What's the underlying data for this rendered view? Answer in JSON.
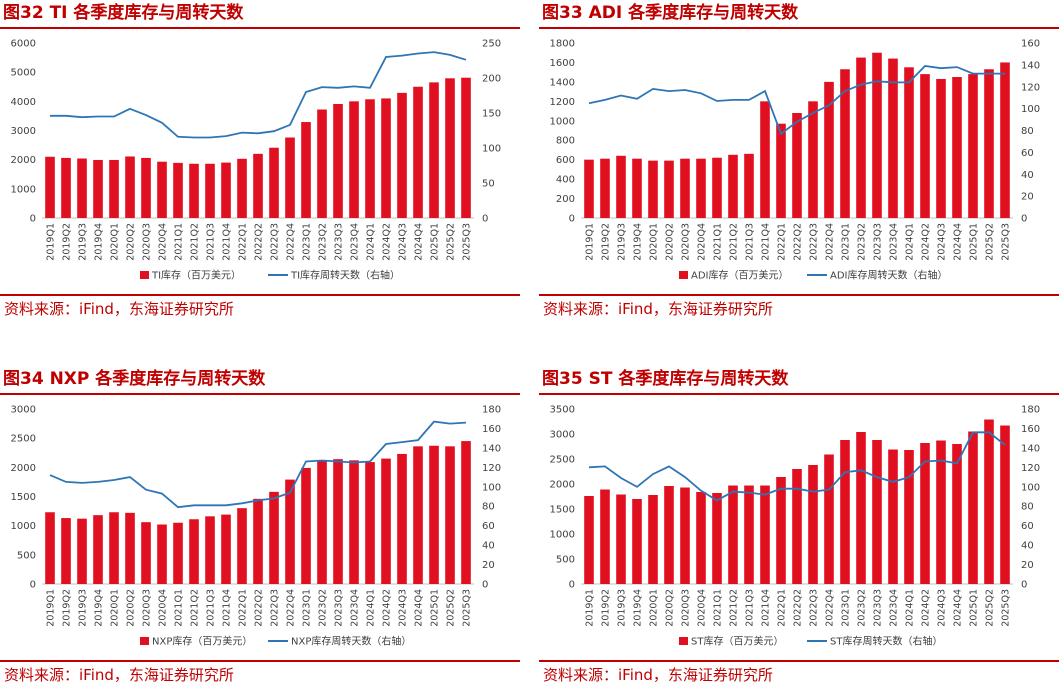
{
  "source_text": "资料来源：iFind，东海证券研究所",
  "charts": [
    {
      "title": "图32  TI 各季度库存与周转天数",
      "legend": {
        "bar": "TI库存（百万美元）",
        "line": "TI库存周转天数（右轴）"
      },
      "colors": {
        "bar": "#E01020",
        "line": "#2E75B6"
      }
    },
    {
      "title": "图33  ADI 各季度库存与周转天数",
      "legend": {
        "bar": "ADI库存（百万美元）",
        "line": "ADI库存周转天数（右轴）"
      },
      "colors": {
        "bar": "#E01020",
        "line": "#2E75B6"
      }
    },
    {
      "title": "图34  NXP 各季度库存与周转天数",
      "legend": {
        "bar": "NXP库存（百万美元）",
        "line": "NXP库存周转天数（右轴）"
      },
      "colors": {
        "bar": "#E01020",
        "line": "#2E75B6"
      }
    },
    {
      "title": "图35  ST 各季度库存与周转天数",
      "legend": {
        "bar": "ST库存（百万美元）",
        "line": "ST库存周转天数（右轴）"
      },
      "colors": {
        "bar": "#E01020",
        "line": "#2E75B6"
      }
    }
  ],
  "chart_data": [
    {
      "type": "bar",
      "title": "图32  TI 各季度库存与周转天数",
      "categories": [
        "2019Q1",
        "2019Q2",
        "2019Q3",
        "2019Q4",
        "2020Q1",
        "2020Q2",
        "2020Q3",
        "2020Q4",
        "2021Q1",
        "2021Q2",
        "2021Q3",
        "2021Q4",
        "2022Q1",
        "2022Q2",
        "2022Q3",
        "2022Q4",
        "2023Q1",
        "2023Q2",
        "2023Q3",
        "2023Q4",
        "2024Q1",
        "2024Q2",
        "2024Q3",
        "2024Q4",
        "2025Q1",
        "2025Q2",
        "2025Q3"
      ],
      "series": [
        {
          "name": "TI库存（百万美元）",
          "kind": "bar",
          "axis": "left",
          "values": [
            2100,
            2060,
            2040,
            1990,
            1990,
            2110,
            2060,
            1930,
            1890,
            1860,
            1860,
            1900,
            2030,
            2200,
            2410,
            2760,
            3290,
            3720,
            3910,
            4000,
            4070,
            4100,
            4290,
            4500,
            4650,
            4790,
            4810
          ]
        },
        {
          "name": "TI库存周转天数（右轴）",
          "kind": "line",
          "axis": "right",
          "values": [
            146,
            146,
            144,
            145,
            145,
            156,
            147,
            136,
            116,
            115,
            115,
            117,
            122,
            121,
            124,
            133,
            180,
            187,
            186,
            188,
            186,
            230,
            232,
            235,
            237,
            233,
            226
          ]
        }
      ],
      "ylim": [
        0,
        6000
      ],
      "yticks": [
        0,
        1000,
        2000,
        3000,
        4000,
        5000,
        6000
      ],
      "y2lim": [
        0,
        250
      ],
      "y2ticks": [
        0,
        50,
        100,
        150,
        200,
        250
      ],
      "xlabel": "",
      "ylabel": "",
      "legend_position": "bottom"
    },
    {
      "type": "bar",
      "title": "图33  ADI 各季度库存与周转天数",
      "categories": [
        "2019Q1",
        "2019Q2",
        "2019Q3",
        "2019Q4",
        "2020Q1",
        "2020Q2",
        "2020Q3",
        "2020Q4",
        "2021Q1",
        "2021Q2",
        "2021Q3",
        "2021Q4",
        "2022Q1",
        "2022Q2",
        "2022Q3",
        "2022Q4",
        "2023Q1",
        "2023Q2",
        "2023Q3",
        "2023Q4",
        "2024Q1",
        "2024Q2",
        "2024Q3",
        "2024Q4",
        "2025Q1",
        "2025Q2",
        "2025Q3"
      ],
      "series": [
        {
          "name": "ADI库存（百万美元）",
          "kind": "bar",
          "axis": "left",
          "values": [
            600,
            610,
            640,
            610,
            590,
            590,
            610,
            610,
            620,
            650,
            660,
            1200,
            970,
            1080,
            1200,
            1400,
            1530,
            1650,
            1700,
            1640,
            1550,
            1480,
            1430,
            1450,
            1480,
            1530,
            1600
          ]
        },
        {
          "name": "ADI库存周转天数（右轴）",
          "kind": "line",
          "axis": "right",
          "values": [
            105,
            108,
            112,
            109,
            118,
            116,
            117,
            114,
            107,
            108,
            108,
            116,
            77,
            88,
            96,
            103,
            116,
            122,
            125,
            124,
            124,
            139,
            137,
            138,
            132,
            132,
            132
          ]
        }
      ],
      "ylim": [
        0,
        1800
      ],
      "yticks": [
        0,
        200,
        400,
        600,
        800,
        1000,
        1200,
        1400,
        1600,
        1800
      ],
      "y2lim": [
        0,
        160
      ],
      "y2ticks": [
        0,
        20,
        40,
        60,
        80,
        100,
        120,
        140,
        160
      ],
      "xlabel": "",
      "ylabel": "",
      "legend_position": "bottom"
    },
    {
      "type": "bar",
      "title": "图34  NXP 各季度库存与周转天数",
      "categories": [
        "2019Q1",
        "2019Q2",
        "2019Q3",
        "2019Q4",
        "2020Q1",
        "2020Q2",
        "2020Q3",
        "2020Q4",
        "2021Q1",
        "2021Q2",
        "2021Q3",
        "2021Q4",
        "2022Q1",
        "2022Q2",
        "2022Q3",
        "2022Q4",
        "2023Q1",
        "2023Q2",
        "2023Q3",
        "2023Q4",
        "2024Q1",
        "2024Q2",
        "2024Q3",
        "2024Q4",
        "2025Q1",
        "2025Q2",
        "2025Q3"
      ],
      "series": [
        {
          "name": "NXP库存（百万美元）",
          "kind": "bar",
          "axis": "left",
          "values": [
            1230,
            1130,
            1120,
            1180,
            1230,
            1220,
            1060,
            1020,
            1050,
            1110,
            1160,
            1190,
            1300,
            1460,
            1580,
            1790,
            1990,
            2110,
            2140,
            2120,
            2090,
            2150,
            2230,
            2360,
            2370,
            2360,
            2450
          ]
        },
        {
          "name": "NXP库存周转天数（右轴）",
          "kind": "line",
          "axis": "right",
          "values": [
            112,
            105,
            104,
            105,
            107,
            110,
            97,
            93,
            79,
            81,
            81,
            81,
            83,
            86,
            88,
            94,
            126,
            127,
            126,
            125,
            126,
            144,
            146,
            148,
            167,
            165,
            166
          ]
        }
      ],
      "ylim": [
        0,
        3000
      ],
      "yticks": [
        0,
        500,
        1000,
        1500,
        2000,
        2500,
        3000
      ],
      "y2lim": [
        0,
        180
      ],
      "y2ticks": [
        0,
        20,
        40,
        60,
        80,
        100,
        120,
        140,
        160,
        180
      ],
      "xlabel": "",
      "ylabel": "",
      "legend_position": "bottom"
    },
    {
      "type": "bar",
      "title": "图35  ST 各季度库存与周转天数",
      "categories": [
        "2019Q1",
        "2019Q2",
        "2019Q3",
        "2019Q4",
        "2020Q1",
        "2020Q2",
        "2020Q3",
        "2020Q4",
        "2021Q1",
        "2021Q2",
        "2021Q3",
        "2021Q4",
        "2022Q1",
        "2022Q2",
        "2022Q3",
        "2022Q4",
        "2023Q1",
        "2023Q2",
        "2023Q3",
        "2023Q4",
        "2024Q1",
        "2024Q2",
        "2024Q3",
        "2024Q4",
        "2025Q1",
        "2025Q2",
        "2025Q3"
      ],
      "series": [
        {
          "name": "ST库存（百万美元）",
          "kind": "bar",
          "axis": "left",
          "values": [
            1760,
            1890,
            1790,
            1700,
            1780,
            1960,
            1930,
            1840,
            1820,
            1970,
            1970,
            1970,
            2140,
            2300,
            2380,
            2590,
            2880,
            3040,
            2880,
            2690,
            2680,
            2820,
            2870,
            2800,
            3050,
            3290,
            3170
          ]
        },
        {
          "name": "ST库存周转天数（右轴）",
          "kind": "line",
          "axis": "right",
          "values": [
            120,
            121,
            109,
            100,
            113,
            121,
            110,
            96,
            86,
            95,
            94,
            92,
            98,
            98,
            95,
            97,
            115,
            117,
            110,
            105,
            110,
            126,
            127,
            124,
            156,
            156,
            143
          ]
        }
      ],
      "ylim": [
        0,
        3500
      ],
      "yticks": [
        0,
        500,
        1000,
        1500,
        2000,
        2500,
        3000,
        3500
      ],
      "y2lim": [
        0,
        180
      ],
      "y2ticks": [
        0,
        20,
        40,
        60,
        80,
        100,
        120,
        140,
        160,
        180
      ],
      "xlabel": "",
      "ylabel": "",
      "legend_position": "bottom"
    }
  ]
}
